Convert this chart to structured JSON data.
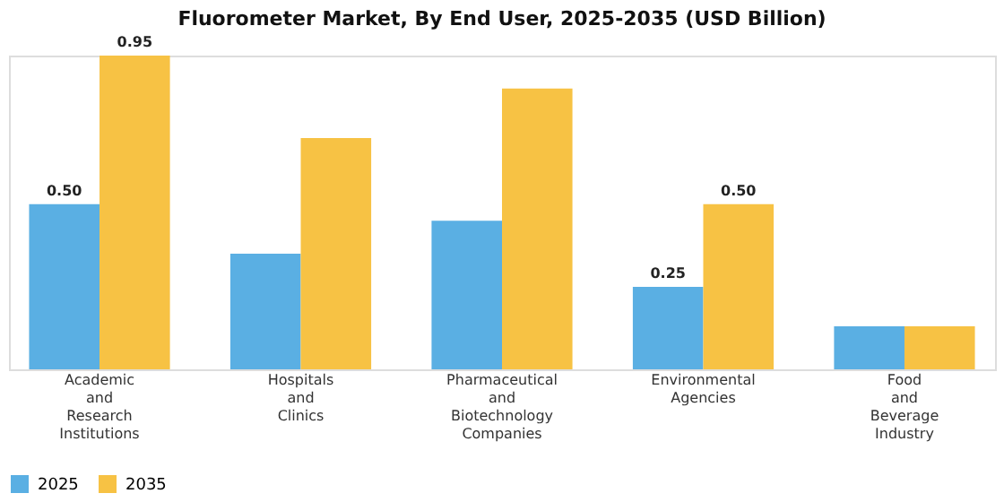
{
  "chart_data": {
    "type": "bar",
    "title": "Fluorometer Market, By End User, 2025-2035 (USD Billion)",
    "categories": [
      "Academic and Research Institutions",
      "Hospitals and Clinics",
      "Pharmaceutical and Biotechnology Companies",
      "Environmental Agencies",
      "Food and Beverage Industry"
    ],
    "series": [
      {
        "name": "2025",
        "color": "#5aafe3",
        "values": [
          0.5,
          0.35,
          0.45,
          0.25,
          0.13
        ],
        "value_labels": [
          "0.50",
          null,
          null,
          "0.25",
          null
        ]
      },
      {
        "name": "2035",
        "color": "#f7c244",
        "values": [
          0.95,
          0.7,
          0.85,
          0.5,
          0.13
        ],
        "value_labels": [
          "0.95",
          null,
          null,
          "0.50",
          null
        ]
      }
    ],
    "legend": "bottom",
    "grid": false
  }
}
